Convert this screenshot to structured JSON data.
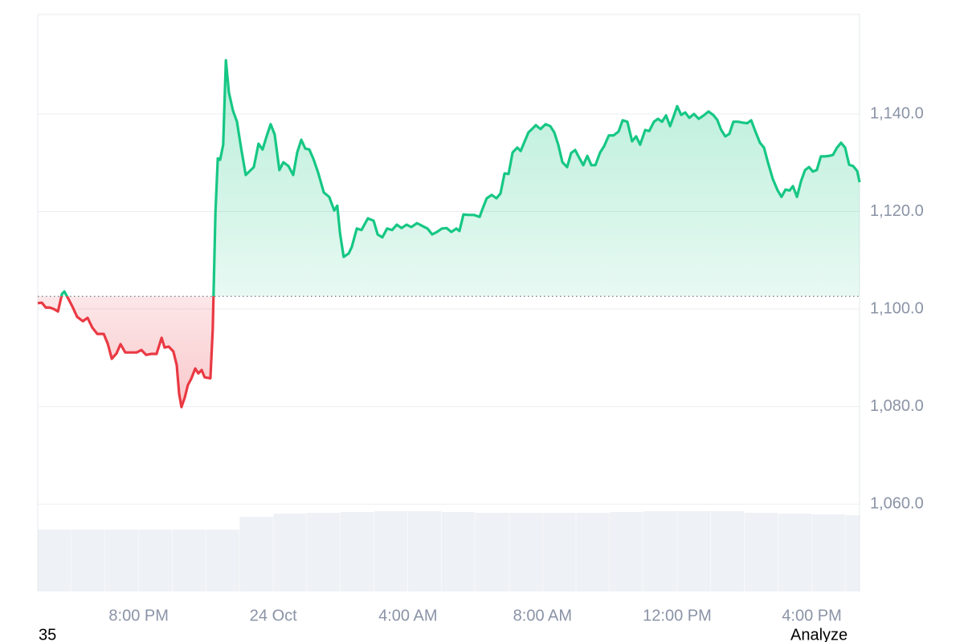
{
  "chart_data": {
    "type": "area",
    "x": [
      -7.0,
      -6.88,
      -6.76,
      -6.64,
      -6.52,
      -6.4,
      -6.28,
      -6.21,
      -6.09,
      -5.97,
      -5.83,
      -5.66,
      -5.52,
      -5.38,
      -5.23,
      -5.04,
      -4.92,
      -4.8,
      -4.66,
      -4.54,
      -4.4,
      -4.23,
      -4.06,
      -3.92,
      -3.78,
      -3.63,
      -3.47,
      -3.32,
      -3.23,
      -3.11,
      -2.97,
      -2.87,
      -2.8,
      -2.73,
      -2.63,
      -2.54,
      -2.44,
      -2.32,
      -2.23,
      -2.13,
      -2.04,
      -1.87,
      -1.8,
      -1.72,
      -1.65,
      -1.58,
      -1.49,
      -1.41,
      -1.32,
      -1.2,
      -1.08,
      -0.96,
      -0.82,
      -0.7,
      -0.58,
      -0.44,
      -0.32,
      -0.2,
      -0.08,
      0.04,
      0.18,
      0.3,
      0.45,
      0.59,
      0.71,
      0.83,
      0.95,
      1.07,
      1.19,
      1.33,
      1.5,
      1.66,
      1.81,
      1.9,
      1.98,
      2.09,
      2.24,
      2.33,
      2.48,
      2.62,
      2.81,
      2.98,
      3.1,
      3.24,
      3.38,
      3.53,
      3.67,
      3.81,
      3.96,
      4.1,
      4.27,
      4.41,
      4.58,
      4.72,
      4.86,
      5.01,
      5.15,
      5.29,
      5.44,
      5.53,
      5.65,
      5.79,
      5.96,
      6.13,
      6.22,
      6.34,
      6.49,
      6.63,
      6.75,
      6.87,
      6.99,
      7.11,
      7.25,
      7.35,
      7.47,
      7.58,
      7.7,
      7.8,
      7.94,
      8.09,
      8.23,
      8.35,
      8.47,
      8.59,
      8.73,
      8.85,
      8.97,
      9.09,
      9.21,
      9.33,
      9.45,
      9.57,
      9.71,
      9.83,
      9.97,
      10.11,
      10.26,
      10.38,
      10.52,
      10.66,
      10.78,
      10.9,
      11.05,
      11.17,
      11.31,
      11.43,
      11.55,
      11.67,
      11.79,
      11.88,
      12.0,
      12.12,
      12.24,
      12.36,
      12.5,
      12.64,
      12.79,
      12.93,
      13.07,
      13.19,
      13.31,
      13.43,
      13.55,
      13.67,
      13.81,
      13.96,
      14.08,
      14.2,
      14.32,
      14.46,
      14.58,
      14.7,
      14.84,
      14.98,
      15.1,
      15.22,
      15.34,
      15.44,
      15.56,
      15.68,
      15.8,
      15.92,
      16.03,
      16.15,
      16.27,
      16.39,
      16.51,
      16.63,
      16.75,
      16.87,
      16.99,
      17.11,
      17.23,
      17.35,
      17.42
    ],
    "values": [
      1101.2,
      1101.3,
      1100.3,
      1100.3,
      1100.0,
      1099.5,
      1103.1,
      1103.6,
      1102.1,
      1100.5,
      1098.4,
      1097.5,
      1098.2,
      1096.2,
      1094.9,
      1094.9,
      1092.9,
      1089.8,
      1090.9,
      1092.8,
      1091.1,
      1091.1,
      1091.1,
      1091.6,
      1090.6,
      1090.8,
      1090.8,
      1094.1,
      1092.1,
      1092.3,
      1091.3,
      1088.5,
      1082.7,
      1079.9,
      1081.9,
      1084.4,
      1085.7,
      1087.8,
      1086.8,
      1087.5,
      1086.0,
      1085.8,
      1095.9,
      1119.8,
      1130.9,
      1130.6,
      1133.7,
      1151.0,
      1144.4,
      1140.7,
      1138.4,
      1133.1,
      1127.5,
      1128.3,
      1129.1,
      1133.9,
      1132.7,
      1135.4,
      1137.9,
      1135.8,
      1128.5,
      1130.1,
      1129.3,
      1127.5,
      1132.1,
      1134.7,
      1132.9,
      1132.7,
      1130.8,
      1128.0,
      1123.9,
      1123.0,
      1120.2,
      1121.2,
      1115.6,
      1110.7,
      1111.4,
      1112.7,
      1116.5,
      1116.2,
      1118.6,
      1118.1,
      1115.3,
      1114.7,
      1116.5,
      1116.2,
      1117.3,
      1116.6,
      1117.3,
      1116.8,
      1117.6,
      1117.1,
      1116.5,
      1115.3,
      1115.8,
      1116.5,
      1116.6,
      1115.8,
      1116.5,
      1116.0,
      1119.4,
      1119.3,
      1119.3,
      1118.9,
      1120.6,
      1122.7,
      1123.4,
      1122.7,
      1123.7,
      1127.8,
      1127.7,
      1132.1,
      1133.1,
      1132.4,
      1134.4,
      1136.2,
      1137.0,
      1137.7,
      1136.9,
      1137.9,
      1137.5,
      1136.2,
      1133.6,
      1130.1,
      1129.1,
      1132.0,
      1132.6,
      1131.0,
      1129.5,
      1131.4,
      1129.5,
      1129.5,
      1132.1,
      1133.4,
      1135.6,
      1135.6,
      1136.4,
      1138.7,
      1138.4,
      1134.4,
      1135.4,
      1133.7,
      1136.7,
      1136.5,
      1138.4,
      1139.0,
      1138.4,
      1139.7,
      1137.5,
      1139.2,
      1141.6,
      1139.8,
      1140.3,
      1139.2,
      1140.0,
      1139.0,
      1139.7,
      1140.5,
      1139.8,
      1138.8,
      1136.7,
      1135.4,
      1135.9,
      1138.4,
      1138.4,
      1138.2,
      1138.1,
      1138.7,
      1136.5,
      1134.1,
      1133.1,
      1130.0,
      1126.7,
      1124.4,
      1123.0,
      1124.5,
      1124.3,
      1125.2,
      1123.0,
      1126.2,
      1128.5,
      1129.1,
      1128.2,
      1128.5,
      1131.3,
      1131.3,
      1131.4,
      1131.6,
      1133.1,
      1134.1,
      1133.1,
      1129.6,
      1129.3,
      1128.3,
      1126.0
    ],
    "baseline": 1102.6,
    "color_up": "#16c784",
    "color_down": "#ea3943",
    "xlim": [
      -7,
      17.42
    ],
    "xticks": [
      {
        "value": -4,
        "label": "8:00 PM"
      },
      {
        "value": 0,
        "label": "24 Oct"
      },
      {
        "value": 4,
        "label": "4:00 AM"
      },
      {
        "value": 8,
        "label": "8:00 AM"
      },
      {
        "value": 12,
        "label": "12:00 PM"
      },
      {
        "value": 16,
        "label": "4:00 PM"
      }
    ],
    "ylim": [
      1042.1,
      1160.4
    ],
    "yticks": [
      {
        "value": 1060,
        "label": "1,060.0"
      },
      {
        "value": 1080,
        "label": "1,080.0"
      },
      {
        "value": 1100,
        "label": "1,100.0"
      },
      {
        "value": 1120,
        "label": "1,120.0"
      },
      {
        "value": 1140,
        "label": "1,140.0"
      }
    ],
    "grid": true,
    "volume": {
      "x": [
        -7,
        -6,
        -5,
        -4,
        -3,
        -2,
        -1,
        0,
        1,
        2,
        3,
        4,
        5,
        6,
        7,
        8,
        9,
        10,
        11,
        12,
        13,
        14,
        15,
        16,
        17
      ],
      "values": [
        77,
        77,
        77,
        77,
        77,
        77,
        93,
        97,
        98,
        99,
        100,
        100,
        99,
        98,
        98,
        98,
        98,
        99,
        100,
        100,
        100,
        98,
        97,
        96,
        95
      ],
      "ylim": [
        0,
        100
      ],
      "color": "#eef1f5"
    }
  },
  "footer": {
    "left": "35",
    "right": "Analyze"
  }
}
